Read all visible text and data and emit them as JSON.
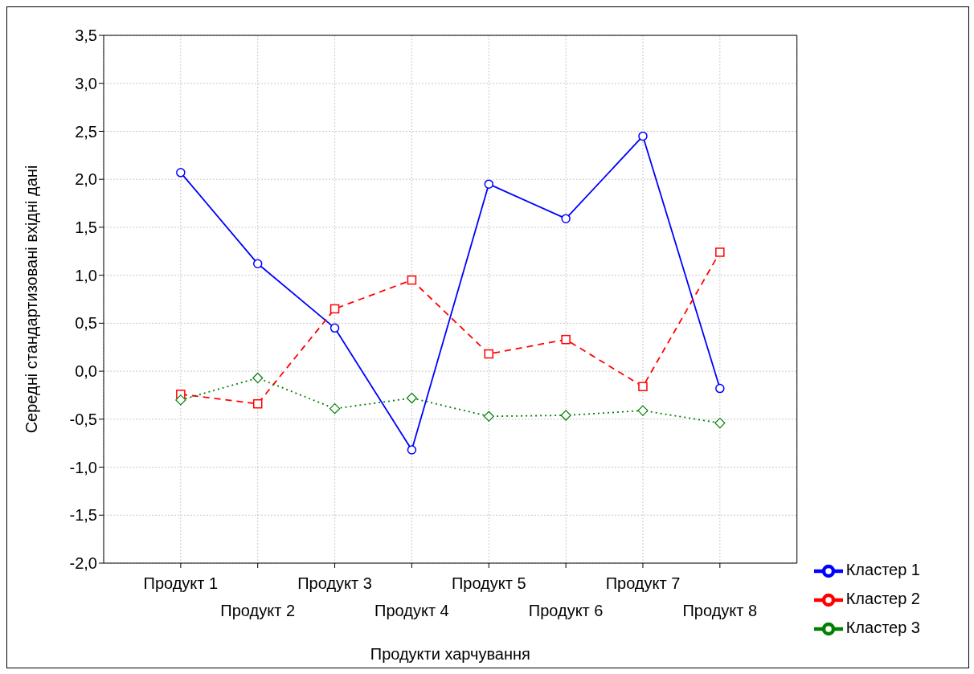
{
  "chart_data": {
    "type": "line",
    "xlabel": "Продукти харчування",
    "ylabel": "Середні стандартизовані вхідні дані",
    "categories": [
      "Продукт 1",
      "Продукт 2",
      "Продукт 3",
      "Продукт 4",
      "Продукт 5",
      "Продукт 6",
      "Продукт 7",
      "Продукт 8"
    ],
    "series": [
      {
        "name": "Кластер 1",
        "color": "#0000ff",
        "marker": "circle",
        "line_style": "solid",
        "values": [
          2.07,
          1.12,
          0.45,
          -0.82,
          1.95,
          1.59,
          2.45,
          -0.18
        ]
      },
      {
        "name": "Кластер 2",
        "color": "#ff0000",
        "marker": "square",
        "line_style": "dashed",
        "values": [
          -0.24,
          -0.34,
          0.65,
          0.95,
          0.18,
          0.33,
          -0.16,
          1.24
        ]
      },
      {
        "name": "Кластер 3",
        "color": "#008000",
        "marker": "diamond",
        "line_style": "dotted",
        "values": [
          -0.3,
          -0.07,
          -0.39,
          -0.28,
          -0.47,
          -0.46,
          -0.41,
          -0.54
        ]
      }
    ],
    "ylim": [
      -2.0,
      3.5
    ],
    "yticks": [
      {
        "value": -2.0,
        "label": "-2,0"
      },
      {
        "value": -1.5,
        "label": "-1,5"
      },
      {
        "value": -1.0,
        "label": "-1,0"
      },
      {
        "value": -0.5,
        "label": "-0,5"
      },
      {
        "value": 0.0,
        "label": "0,0"
      },
      {
        "value": 0.5,
        "label": "0,5"
      },
      {
        "value": 1.0,
        "label": "1,0"
      },
      {
        "value": 1.5,
        "label": "1,5"
      },
      {
        "value": 2.0,
        "label": "2,0"
      },
      {
        "value": 2.5,
        "label": "2,5"
      },
      {
        "value": 3.0,
        "label": "3,0"
      },
      {
        "value": 3.5,
        "label": "3,5"
      }
    ],
    "grid": true,
    "legend": "bottom right"
  }
}
